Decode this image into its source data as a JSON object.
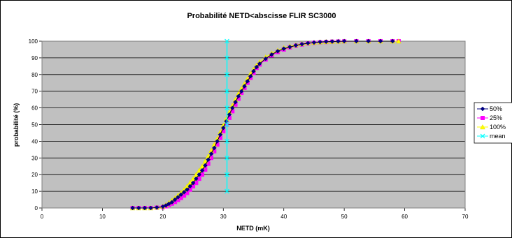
{
  "chart_data": {
    "type": "line",
    "title": "Probabilité NETD<abscisse  FLIR SC3000",
    "xlabel": "NETD (mK)",
    "ylabel": "probabilité (%)",
    "xlim": [
      0,
      70
    ],
    "ylim": [
      0,
      100
    ],
    "xticks": [
      "0",
      "10",
      "20",
      "30",
      "40",
      "50",
      "60",
      "70"
    ],
    "yticks": [
      "0",
      "10",
      "20",
      "30",
      "40",
      "50",
      "60",
      "70",
      "80",
      "90",
      "100"
    ],
    "grid": "horizontal",
    "legend_position": "right",
    "plot_background": "#c0c0c0",
    "series": [
      {
        "name": "50%",
        "color": "#000080",
        "marker": "diamond",
        "x": [
          15,
          16,
          17,
          18,
          19,
          20,
          20.5,
          21,
          21.5,
          22,
          22.5,
          23,
          23.5,
          24,
          24.5,
          25,
          25.5,
          26,
          26.5,
          27,
          27.5,
          28,
          28.5,
          29,
          29.5,
          30,
          30.5,
          31,
          31.5,
          32,
          32.5,
          33,
          33.5,
          34,
          34.5,
          35,
          35.5,
          36,
          37,
          38,
          39,
          40,
          41,
          42,
          43,
          44,
          45,
          46,
          47,
          48,
          49,
          50,
          52,
          54,
          56,
          58
        ],
        "y": [
          0,
          0,
          0,
          0,
          0.3,
          0.8,
          1.5,
          2.5,
          3.5,
          5,
          6.5,
          8,
          9.5,
          11,
          13,
          15,
          17.5,
          20,
          22.5,
          25.5,
          29,
          32.5,
          36,
          40,
          44,
          48,
          52,
          56,
          60,
          63.5,
          67,
          70,
          73,
          76,
          79,
          82,
          84.5,
          86.5,
          89.5,
          92,
          94,
          95.5,
          96.5,
          97.5,
          98.2,
          98.8,
          99.2,
          99.5,
          99.7,
          99.8,
          99.9,
          100,
          100,
          100,
          100,
          100
        ]
      },
      {
        "name": "25%",
        "color": "#ff00ff",
        "marker": "square",
        "x": [
          15,
          16,
          17,
          18,
          19,
          20,
          20.5,
          21,
          21.5,
          22,
          22.5,
          23,
          23.5,
          24,
          24.5,
          25,
          25.5,
          26,
          26.5,
          27,
          27.5,
          28,
          28.5,
          29,
          29.5,
          30,
          30.5,
          31,
          31.5,
          32,
          32.5,
          33,
          33.5,
          34,
          34.5,
          35,
          35.5,
          36,
          37,
          38,
          39,
          40,
          41,
          42,
          43,
          44,
          45,
          46,
          47,
          48,
          49,
          50,
          52,
          54,
          56,
          58,
          59
        ],
        "y": [
          0,
          0,
          0,
          0,
          0.2,
          0.5,
          1,
          1.8,
          2.6,
          3.6,
          4.8,
          6,
          7.4,
          9,
          11,
          13,
          15,
          17.5,
          20,
          23,
          26.5,
          30,
          34,
          38,
          42,
          46,
          50,
          54,
          58,
          62,
          65.5,
          69,
          72,
          75,
          78,
          81,
          84,
          86,
          89,
          91.5,
          93.5,
          95,
          96.3,
          97.3,
          98,
          98.6,
          99,
          99.3,
          99.5,
          99.7,
          99.8,
          99.9,
          100,
          100,
          100,
          100,
          100
        ]
      },
      {
        "name": "100%",
        "color": "#ffff00",
        "marker": "triangle",
        "x": [
          15,
          16,
          17,
          18,
          19,
          20,
          20.5,
          21,
          21.5,
          22,
          22.5,
          23,
          23.5,
          24,
          24.5,
          25,
          25.5,
          26,
          26.5,
          27,
          27.5,
          28,
          28.5,
          29,
          29.5,
          30,
          30.5,
          31,
          31.5,
          32,
          32.5,
          33,
          33.5,
          34,
          34.5,
          35,
          35.5,
          36,
          37,
          38,
          39,
          40,
          41,
          42,
          43,
          44,
          45,
          46,
          47,
          48,
          49,
          50,
          52,
          54,
          56,
          58,
          59
        ],
        "y": [
          0,
          0,
          0,
          0,
          0.4,
          1,
          2,
          3.2,
          4.6,
          6,
          7.6,
          9.2,
          11,
          13,
          15.2,
          17.5,
          20,
          22.5,
          25,
          28,
          31,
          34.5,
          38,
          41.5,
          45.5,
          49.5,
          53.5,
          57.5,
          61.5,
          65,
          68.5,
          71.5,
          74.5,
          77.5,
          80.5,
          83,
          85.5,
          87.5,
          90.5,
          92.8,
          94.5,
          96,
          97,
          97.8,
          98.4,
          98.9,
          99.2,
          99.5,
          99.7,
          99.8,
          99.9,
          100,
          100,
          100,
          100,
          100,
          100
        ]
      },
      {
        "name": "mean",
        "color": "#00ffff",
        "marker": "x",
        "x": [
          30.6,
          30.6,
          30.6,
          30.6,
          30.6,
          30.6,
          30.6,
          30.6,
          30.6,
          30.6
        ],
        "y": [
          10,
          20,
          30,
          40,
          50,
          60,
          70,
          80,
          90,
          100
        ]
      }
    ]
  }
}
